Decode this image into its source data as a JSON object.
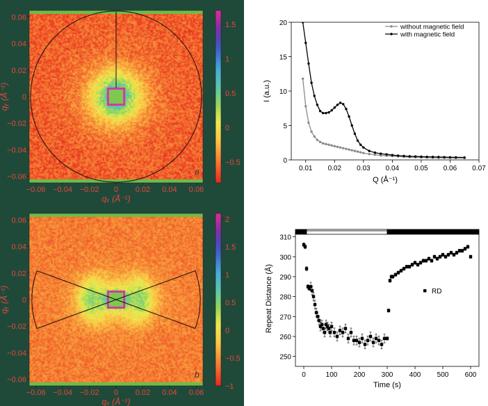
{
  "colors": {
    "panel_bg": "#1f4a3a",
    "tick_red": "#e8463a",
    "series_grey": "#8a8a8a",
    "series_black": "#000000"
  },
  "chart_data": [
    {
      "type": "heatmap",
      "panel_label": "a",
      "xlabel": "qₓ (Å⁻¹)",
      "ylabel": "qᵧ (Å⁻¹)",
      "xlim": [
        -0.065,
        0.065
      ],
      "ylim": [
        -0.065,
        0.065
      ],
      "xticks": [
        "−0.06",
        "−0.04",
        "−0.02",
        "0",
        "0.02",
        "0.04",
        "0.06"
      ],
      "yticks": [
        "0.06",
        "0.04",
        "0.02",
        "0",
        "−0.02",
        "−0.04",
        "−0.06"
      ],
      "colorbar_ticks": [
        "1.5",
        "1",
        "0.5",
        "0",
        "−0.5"
      ],
      "colorbar_range": [
        -0.8,
        1.7
      ],
      "overlay": "circle"
    },
    {
      "type": "heatmap",
      "panel_label": "b",
      "xlabel": "qₓ (Å⁻¹)",
      "ylabel": "qᵧ (Å⁻¹)",
      "xlim": [
        -0.065,
        0.065
      ],
      "ylim": [
        -0.065,
        0.065
      ],
      "xticks": [
        "−0.06",
        "−0.04",
        "−0.02",
        "0",
        "0.02",
        "0.04",
        "0.06"
      ],
      "yticks": [
        "0.06",
        "0.04",
        "0.02",
        "0",
        "−0.02",
        "−0.04",
        "−0.06"
      ],
      "colorbar_ticks": [
        "2",
        "1.5",
        "1",
        "0.5",
        "0",
        "−0.5",
        "−1"
      ],
      "colorbar_range": [
        -1.0,
        2.1
      ],
      "overlay": "horizontal sectors"
    },
    {
      "type": "line",
      "xlabel": "Q (Å⁻¹)",
      "ylabel": "I (a.u.)",
      "xlim": [
        0.005,
        0.07
      ],
      "ylim": [
        0,
        20
      ],
      "xticks": [
        0.01,
        0.02,
        0.03,
        0.04,
        0.05,
        0.06,
        0.07
      ],
      "yticks": [
        0,
        5,
        10,
        15,
        20
      ],
      "legend_position": "top-right",
      "series": [
        {
          "name": "without magnetic field",
          "x": [
            0.009,
            0.01,
            0.011,
            0.012,
            0.013,
            0.014,
            0.015,
            0.016,
            0.017,
            0.018,
            0.019,
            0.02,
            0.021,
            0.022,
            0.023,
            0.024,
            0.025,
            0.026,
            0.027,
            0.028,
            0.029,
            0.03,
            0.032,
            0.034,
            0.036,
            0.038,
            0.04,
            0.042,
            0.044,
            0.046,
            0.048,
            0.05,
            0.052,
            0.054,
            0.056,
            0.058,
            0.06,
            0.062,
            0.065
          ],
          "y": [
            11.8,
            7.8,
            5.4,
            4.1,
            3.4,
            2.9,
            2.6,
            2.4,
            2.3,
            2.2,
            2.1,
            2.0,
            1.9,
            1.8,
            1.7,
            1.6,
            1.5,
            1.4,
            1.3,
            1.2,
            1.1,
            1.0,
            0.85,
            0.75,
            0.65,
            0.6,
            0.55,
            0.5,
            0.45,
            0.4,
            0.38,
            0.35,
            0.33,
            0.32,
            0.3,
            0.3,
            0.28,
            0.28,
            0.27
          ]
        },
        {
          "name": "with magnetic field",
          "x": [
            0.009,
            0.01,
            0.011,
            0.012,
            0.013,
            0.014,
            0.015,
            0.016,
            0.017,
            0.018,
            0.019,
            0.02,
            0.021,
            0.022,
            0.023,
            0.024,
            0.025,
            0.026,
            0.027,
            0.028,
            0.029,
            0.03,
            0.032,
            0.034,
            0.036,
            0.038,
            0.04,
            0.042,
            0.044,
            0.046,
            0.048,
            0.05,
            0.052,
            0.054,
            0.056,
            0.058,
            0.06,
            0.062,
            0.065
          ],
          "y": [
            20.5,
            17.0,
            14.0,
            11.2,
            9.3,
            8.0,
            7.1,
            6.8,
            6.8,
            6.9,
            7.2,
            7.6,
            8.0,
            8.3,
            8.1,
            7.4,
            6.3,
            5.0,
            3.8,
            2.8,
            2.2,
            1.8,
            1.3,
            1.05,
            0.9,
            0.8,
            0.7,
            0.62,
            0.57,
            0.52,
            0.5,
            0.47,
            0.45,
            0.43,
            0.42,
            0.4,
            0.38,
            0.37,
            0.35
          ]
        }
      ]
    },
    {
      "type": "scatter",
      "xlabel": "Time (s)",
      "ylabel": "Repeat Distance (Å)",
      "xlim": [
        -30,
        630
      ],
      "ylim": [
        245,
        313
      ],
      "xticks": [
        0,
        100,
        200,
        300,
        400,
        500,
        600
      ],
      "yticks": [
        250,
        260,
        270,
        280,
        290,
        300,
        310
      ],
      "legend_position": "middle-right",
      "field_bar": [
        {
          "from": -30,
          "to": 10,
          "state": "on"
        },
        {
          "from": 10,
          "to": 300,
          "state": "off"
        },
        {
          "from": 300,
          "to": 630,
          "state": "on"
        }
      ],
      "series": [
        {
          "name": "RD",
          "x": [
            0,
            5,
            10,
            15,
            20,
            25,
            30,
            35,
            40,
            45,
            50,
            55,
            60,
            65,
            70,
            75,
            80,
            85,
            90,
            95,
            100,
            110,
            120,
            130,
            140,
            150,
            160,
            170,
            180,
            190,
            200,
            210,
            220,
            230,
            240,
            250,
            260,
            270,
            280,
            290,
            300,
            305,
            310,
            315,
            320,
            330,
            340,
            350,
            360,
            370,
            380,
            390,
            400,
            410,
            420,
            430,
            440,
            450,
            460,
            470,
            480,
            490,
            500,
            510,
            520,
            530,
            540,
            550,
            560,
            570,
            580,
            590,
            600
          ],
          "y": [
            306,
            305,
            294,
            285,
            284,
            285,
            283,
            280,
            276,
            272,
            270,
            268,
            265,
            266,
            264,
            262,
            266,
            265,
            264,
            262,
            265,
            262,
            260,
            263,
            262,
            264,
            259,
            262,
            258,
            258,
            257,
            259,
            256,
            258,
            260,
            257,
            259,
            258,
            256,
            259,
            259,
            273,
            288,
            290,
            290,
            291,
            292,
            293,
            294,
            295,
            295,
            296,
            297,
            296,
            297,
            298,
            298,
            299,
            298,
            300,
            299,
            300,
            301,
            300,
            301,
            302,
            301,
            302,
            303,
            303,
            304,
            305,
            300
          ]
        }
      ]
    }
  ]
}
